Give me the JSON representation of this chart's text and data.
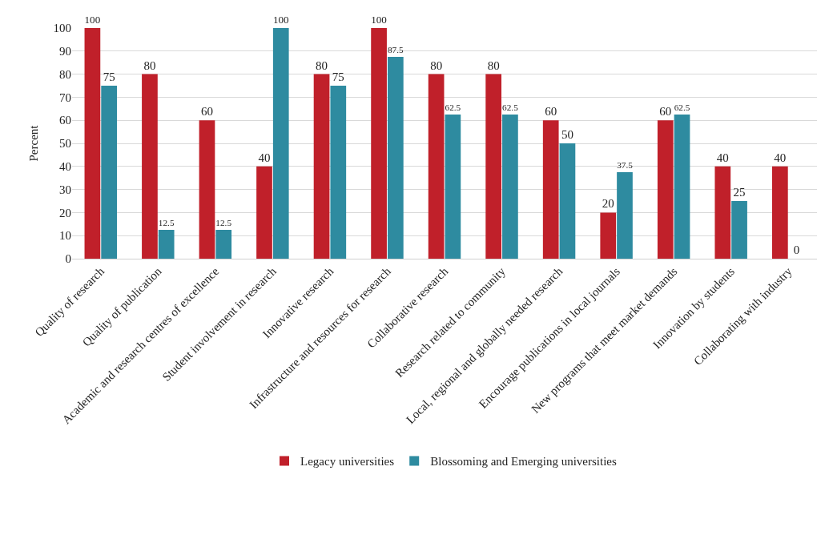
{
  "chart_data": {
    "type": "bar",
    "ylabel": "Percent",
    "categories": [
      "Quality of research",
      "Quality of publication",
      "Academic and research centres of excellence",
      "Student involvement in research",
      "Innovative research",
      "Infrastructure and resources for research",
      "Collaborative research",
      "Research related to community",
      "Local, regional and globally needed research",
      "Encourage publications in local journals",
      "New programs that meet market demands",
      "Innovation by students",
      "Collaborating with industry"
    ],
    "series": [
      {
        "name": "Legacy universities",
        "color": "#c0202a",
        "values": [
          100,
          80,
          60,
          40,
          80,
          100,
          80,
          80,
          60,
          20,
          60,
          40,
          40
        ]
      },
      {
        "name": "Blossoming and Emerging universities",
        "color": "#2e8ba0",
        "values": [
          75,
          12.5,
          12.5,
          100,
          75,
          87.5,
          62.5,
          62.5,
          50,
          37.5,
          62.5,
          25,
          0
        ]
      }
    ],
    "ylim": [
      0,
      100
    ],
    "yticks": [
      0,
      10,
      20,
      30,
      40,
      50,
      60,
      70,
      80,
      90,
      100
    ],
    "grid": "y",
    "legend": "bottom",
    "data_labels": true
  }
}
